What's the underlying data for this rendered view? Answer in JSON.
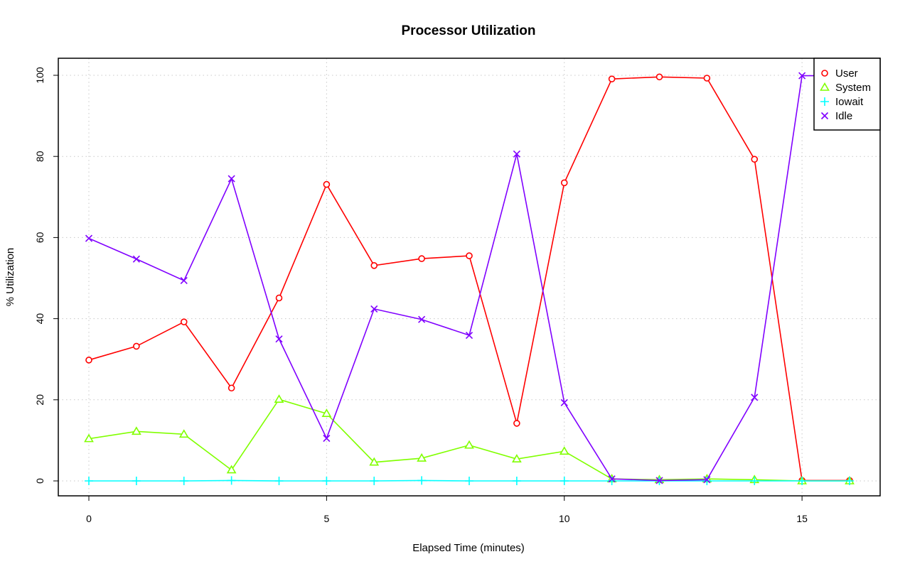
{
  "chart_data": {
    "type": "line",
    "title": "Processor Utilization",
    "xlabel": "Elapsed Time (minutes)",
    "ylabel": "% Utilization",
    "x": [
      0,
      1,
      2,
      3,
      4,
      5,
      6,
      7,
      8,
      9,
      10,
      11,
      12,
      13,
      14,
      15,
      16
    ],
    "xlim": [
      0,
      16
    ],
    "ylim": [
      0,
      100
    ],
    "x_ticks": [
      "0",
      "5",
      "10",
      "15"
    ],
    "y_ticks": [
      "0",
      "20",
      "40",
      "60",
      "80",
      "100"
    ],
    "grid": true,
    "legend_position": "top-right",
    "series": [
      {
        "name": "User",
        "color": "#ff0000",
        "marker": "circle",
        "values": [
          29.8,
          33.2,
          39.2,
          22.9,
          45.1,
          73.1,
          53.1,
          54.8,
          55.5,
          14.2,
          73.5,
          99.1,
          99.6,
          99.3,
          79.3,
          0.1,
          0.1
        ]
      },
      {
        "name": "System",
        "color": "#80ff00",
        "marker": "triangle",
        "values": [
          10.4,
          12.2,
          11.5,
          2.7,
          20.1,
          16.6,
          4.6,
          5.6,
          8.8,
          5.4,
          7.3,
          0.5,
          0.3,
          0.5,
          0.3,
          0.0,
          0.0
        ]
      },
      {
        "name": "Iowait",
        "color": "#00ffff",
        "marker": "plus",
        "values": [
          0.0,
          0.0,
          0.0,
          0.1,
          0.0,
          0.0,
          0.0,
          0.1,
          0.0,
          0.0,
          0.0,
          0.0,
          0.0,
          0.0,
          0.0,
          0.0,
          0.0
        ]
      },
      {
        "name": "Idle",
        "color": "#8000ff",
        "marker": "cross",
        "values": [
          59.8,
          54.7,
          49.4,
          74.5,
          35.0,
          10.5,
          42.4,
          39.8,
          35.9,
          80.6,
          19.3,
          0.5,
          0.1,
          0.3,
          20.6,
          99.9,
          99.9
        ]
      }
    ]
  }
}
